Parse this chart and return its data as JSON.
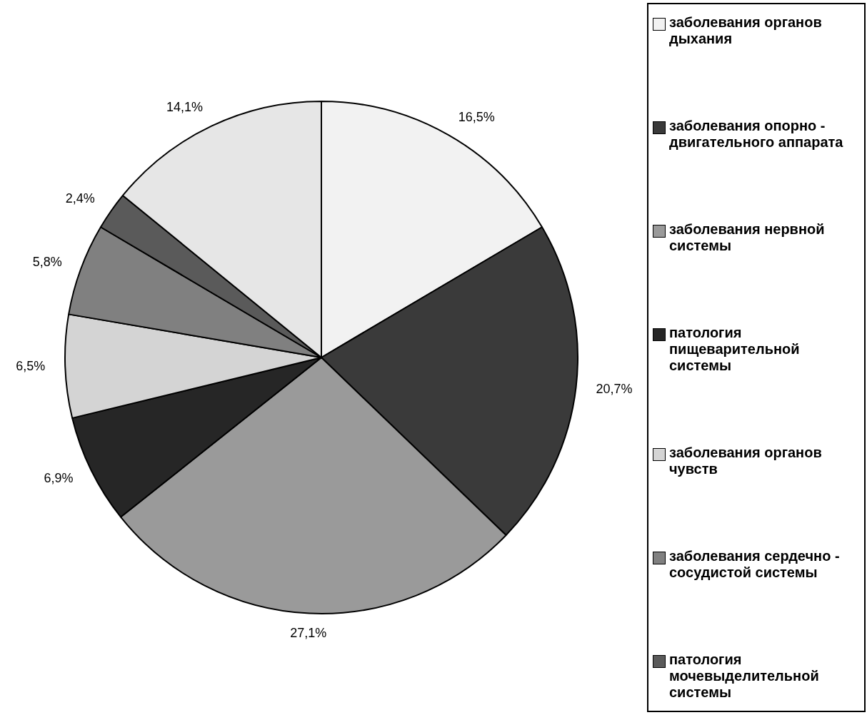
{
  "chart_data": {
    "type": "pie",
    "categories": [
      "заболевания органов дыхания",
      "заболевания опорно - двигательного аппарата",
      "заболевания нервной системы",
      "патология пищеварительной системы",
      "заболевания органов чувств",
      "заболевания сердечно - сосудистой системы",
      "патология мочевыделительной системы",
      null
    ],
    "values": [
      16.5,
      20.7,
      27.1,
      6.9,
      6.5,
      5.8,
      2.4,
      14.1
    ],
    "value_labels": [
      "16,5%",
      "20,7%",
      "27,1%",
      "6,9%",
      "6,5%",
      "5,8%",
      "2,4%",
      "14,1%"
    ],
    "colors": [
      "#f2f2f2",
      "#3a3a3a",
      "#9a9a9a",
      "#262626",
      "#d4d4d4",
      "#808080",
      "#5a5a5a",
      "#e6e6e6"
    ],
    "legend": "right"
  }
}
